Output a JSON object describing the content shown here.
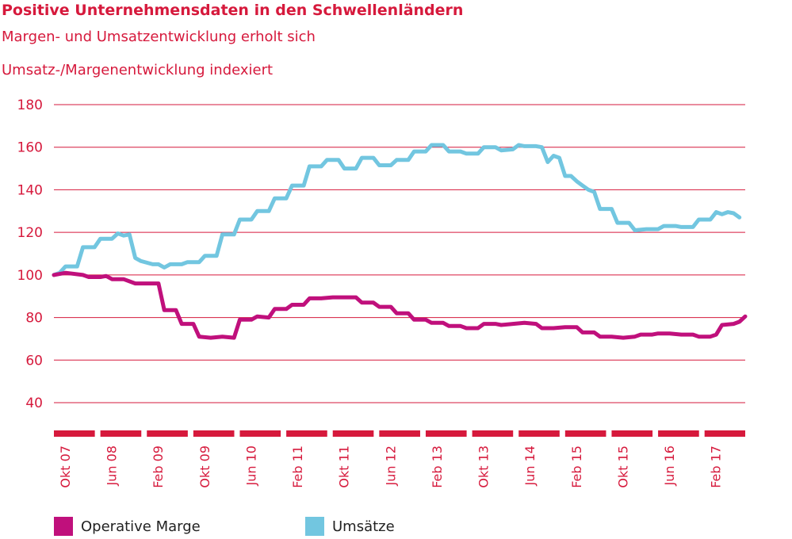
{
  "title": "Positive Unternehmensdaten in den Schwellenländern",
  "subtitle": "Margen- und Umsatzentwicklung erholt sich",
  "colors": {
    "text": "#d6193c",
    "grid": "#d6193c",
    "marge": "#c0107c",
    "umsatz": "#72c6e0"
  },
  "chart_data": {
    "type": "line",
    "ylabel": "Umsatz-/Margenentwicklung indexiert",
    "ylim": [
      30,
      180
    ],
    "yticks": [
      40,
      60,
      80,
      100,
      120,
      140,
      160,
      180
    ],
    "grid": true,
    "legend_position": "bottom",
    "x_tick_labels": [
      "Okt 07",
      "Jun 08",
      "Feb 09",
      "Okt 09",
      "Jun 10",
      "Feb 11",
      "Okt 11",
      "Jun 12",
      "Feb 13",
      "Okt 13",
      "Jun 14",
      "Feb 15",
      "Okt 15",
      "Jun 16",
      "Feb 17"
    ],
    "x_range_months": [
      0,
      119
    ],
    "series": [
      {
        "name": "Operative Marge",
        "color": "#c0107c",
        "points": [
          [
            0,
            100
          ],
          [
            2,
            101
          ],
          [
            5,
            100
          ],
          [
            6,
            99
          ],
          [
            8,
            99
          ],
          [
            9,
            99.5
          ],
          [
            10,
            98
          ],
          [
            12,
            98
          ],
          [
            14,
            96
          ],
          [
            16,
            96
          ],
          [
            18,
            96
          ],
          [
            19,
            83.5
          ],
          [
            21,
            83.5
          ],
          [
            22,
            77
          ],
          [
            24,
            77
          ],
          [
            25,
            71
          ],
          [
            27,
            70.5
          ],
          [
            29,
            71
          ],
          [
            31,
            70.5
          ],
          [
            32,
            79
          ],
          [
            34,
            79
          ],
          [
            35,
            80.5
          ],
          [
            37,
            80
          ],
          [
            38,
            84
          ],
          [
            40,
            84
          ],
          [
            41,
            86
          ],
          [
            43,
            86
          ],
          [
            44,
            89
          ],
          [
            46,
            89
          ],
          [
            48,
            89.5
          ],
          [
            50,
            89.5
          ],
          [
            52,
            89.5
          ],
          [
            53,
            87
          ],
          [
            55,
            87
          ],
          [
            56,
            85
          ],
          [
            58,
            85
          ],
          [
            59,
            82
          ],
          [
            61,
            82
          ],
          [
            62,
            79
          ],
          [
            64,
            79
          ],
          [
            65,
            77.5
          ],
          [
            67,
            77.5
          ],
          [
            68,
            76
          ],
          [
            70,
            76
          ],
          [
            71,
            75
          ],
          [
            73,
            75
          ],
          [
            74,
            77
          ],
          [
            76,
            77
          ],
          [
            77,
            76.5
          ],
          [
            79,
            77
          ],
          [
            81,
            77.5
          ],
          [
            83,
            77
          ],
          [
            84,
            75
          ],
          [
            86,
            75
          ],
          [
            88,
            75.5
          ],
          [
            90,
            75.5
          ],
          [
            91,
            73
          ],
          [
            93,
            73
          ],
          [
            94,
            71
          ],
          [
            96,
            71
          ],
          [
            98,
            70.5
          ],
          [
            100,
            71
          ],
          [
            101,
            72
          ],
          [
            103,
            72
          ],
          [
            104,
            72.5
          ],
          [
            106,
            72.5
          ],
          [
            108,
            72
          ],
          [
            110,
            72
          ],
          [
            111,
            71
          ],
          [
            113,
            71
          ],
          [
            114,
            72
          ],
          [
            115,
            76.5
          ],
          [
            117,
            77
          ],
          [
            118,
            78
          ],
          [
            119,
            80.5
          ]
        ]
      },
      {
        "name": "Umsätze",
        "color": "#72c6e0",
        "points": [
          [
            0,
            100
          ],
          [
            1,
            101
          ],
          [
            2,
            104
          ],
          [
            4,
            104
          ],
          [
            5,
            113
          ],
          [
            7,
            113
          ],
          [
            8,
            117
          ],
          [
            10,
            117
          ],
          [
            11,
            119.5
          ],
          [
            12,
            118.5
          ],
          [
            13,
            119
          ],
          [
            14,
            108
          ],
          [
            15,
            106.5
          ],
          [
            17,
            105
          ],
          [
            18,
            105
          ],
          [
            19,
            103.5
          ],
          [
            20,
            105
          ],
          [
            22,
            105
          ],
          [
            23,
            106
          ],
          [
            25,
            106
          ],
          [
            26,
            109
          ],
          [
            28,
            109
          ],
          [
            29,
            119
          ],
          [
            31,
            119
          ],
          [
            32,
            126
          ],
          [
            34,
            126
          ],
          [
            35,
            130
          ],
          [
            37,
            130
          ],
          [
            38,
            136
          ],
          [
            40,
            136
          ],
          [
            41,
            142
          ],
          [
            43,
            142
          ],
          [
            44,
            151
          ],
          [
            46,
            151
          ],
          [
            47,
            154
          ],
          [
            49,
            154
          ],
          [
            50,
            150
          ],
          [
            52,
            150
          ],
          [
            53,
            155
          ],
          [
            55,
            155
          ],
          [
            56,
            151.5
          ],
          [
            58,
            151.5
          ],
          [
            59,
            154
          ],
          [
            61,
            154
          ],
          [
            62,
            158
          ],
          [
            64,
            158
          ],
          [
            65,
            161
          ],
          [
            67,
            161
          ],
          [
            68,
            158
          ],
          [
            70,
            158
          ],
          [
            71,
            157
          ],
          [
            73,
            157
          ],
          [
            74,
            160
          ],
          [
            76,
            160
          ],
          [
            77,
            158.5
          ],
          [
            79,
            159
          ],
          [
            80,
            161
          ],
          [
            81,
            160.5
          ],
          [
            83,
            160.5
          ],
          [
            84,
            160
          ],
          [
            85,
            153
          ],
          [
            86,
            156
          ],
          [
            87,
            155
          ],
          [
            88,
            146.5
          ],
          [
            89,
            146.5
          ],
          [
            90,
            144
          ],
          [
            91,
            142
          ],
          [
            92,
            140
          ],
          [
            93,
            139
          ],
          [
            94,
            131
          ],
          [
            96,
            131
          ],
          [
            97,
            124.5
          ],
          [
            99,
            124.5
          ],
          [
            100,
            121
          ],
          [
            102,
            121.5
          ],
          [
            104,
            121.5
          ],
          [
            105,
            123
          ],
          [
            107,
            123
          ],
          [
            108,
            122.5
          ],
          [
            110,
            122.5
          ],
          [
            111,
            126
          ],
          [
            113,
            126
          ],
          [
            114,
            129.5
          ],
          [
            115,
            128.5
          ],
          [
            116,
            129.5
          ],
          [
            117,
            129
          ],
          [
            118,
            127
          ]
        ]
      }
    ]
  }
}
